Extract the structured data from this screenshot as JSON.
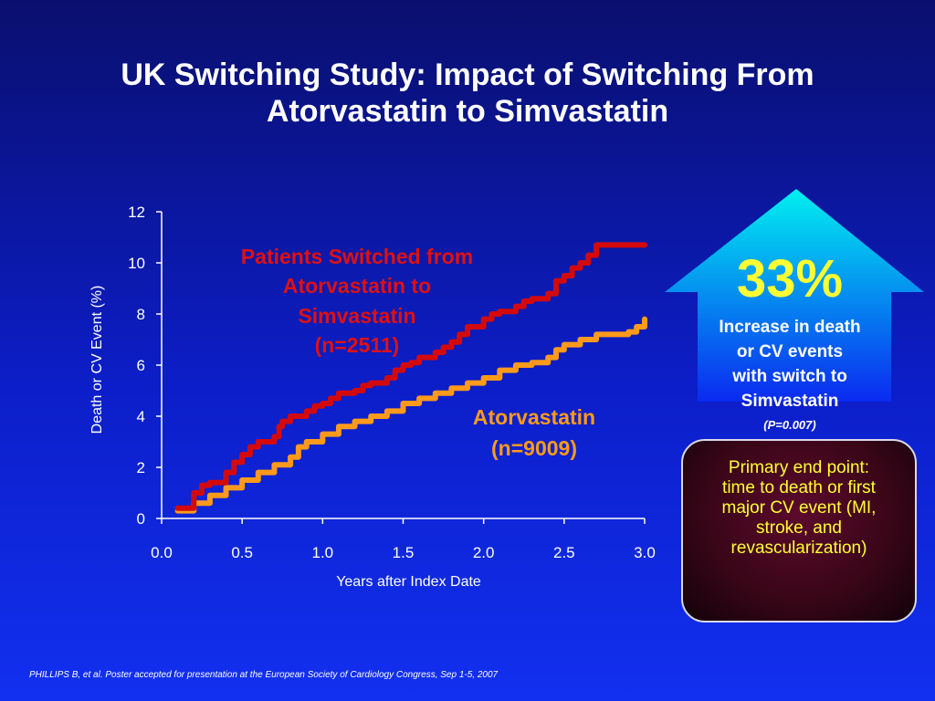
{
  "slide": {
    "title_line1": "UK Switching Study: Impact of Switching From",
    "title_line2": "Atorvastatin to Simvastatin",
    "footnote": "PHILLIPS B, et al. Poster accepted for presentation at the European Society of Cardiology Congress, Sep 1-5, 2007"
  },
  "callout": {
    "percent": "33%",
    "desc_lines": [
      "Increase in death",
      "or CV events",
      "with switch to",
      "Simvastatin"
    ],
    "p_value": "(P=0.007)",
    "box_lines": [
      "Primary end point:",
      "time to death or first",
      "major CV event (MI,",
      "stroke, and",
      "revascularization)"
    ]
  },
  "colors": {
    "switched": "#d40a0a",
    "atorvastatin": "#ff9a1a",
    "callout_text": "#ffff33",
    "arrow_top": "#00f0f0",
    "arrow_bottom": "#0a2af0"
  },
  "chart_data": {
    "type": "line",
    "xlabel": "Years after Index Date",
    "ylabel": "Death or CV Event (%)",
    "xlim": [
      0,
      3
    ],
    "ylim": [
      0,
      12
    ],
    "x_ticks": [
      "0.0",
      "0.5",
      "1.0",
      "1.5",
      "2.0",
      "2.5",
      "3.0"
    ],
    "y_ticks": [
      "0",
      "2",
      "4",
      "6",
      "8",
      "10",
      "12"
    ],
    "annotations": {
      "switched_lines": [
        "Patients Switched from",
        "Atorvastatin to",
        "Simvastatin",
        "(n=2511)"
      ],
      "atorvastatin_lines": [
        "Atorvastatin",
        "(n=9009)"
      ]
    },
    "series": [
      {
        "name": "Patients Switched from Atorvastatin to Simvastatin (n=2511)",
        "step": true,
        "x": [
          0.1,
          0.2,
          0.25,
          0.3,
          0.4,
          0.45,
          0.5,
          0.55,
          0.6,
          0.7,
          0.73,
          0.75,
          0.8,
          0.9,
          0.95,
          1.0,
          1.05,
          1.1,
          1.2,
          1.25,
          1.3,
          1.4,
          1.45,
          1.5,
          1.55,
          1.6,
          1.7,
          1.75,
          1.8,
          1.85,
          1.9,
          2.0,
          2.05,
          2.1,
          2.2,
          2.25,
          2.3,
          2.4,
          2.45,
          2.5,
          2.55,
          2.6,
          2.65,
          2.7,
          2.8,
          3.0
        ],
        "y": [
          0.4,
          1.0,
          1.3,
          1.4,
          1.8,
          2.2,
          2.5,
          2.8,
          3.0,
          3.2,
          3.6,
          3.8,
          4.0,
          4.2,
          4.4,
          4.5,
          4.7,
          4.9,
          5.0,
          5.2,
          5.3,
          5.5,
          5.8,
          6.0,
          6.1,
          6.3,
          6.5,
          6.7,
          6.9,
          7.2,
          7.5,
          7.8,
          8.0,
          8.1,
          8.3,
          8.5,
          8.6,
          8.8,
          9.3,
          9.5,
          9.8,
          10.0,
          10.3,
          10.7,
          10.7,
          10.7
        ]
      },
      {
        "name": "Atorvastatin (n=9009)",
        "step": true,
        "x": [
          0.1,
          0.2,
          0.3,
          0.4,
          0.5,
          0.6,
          0.7,
          0.8,
          0.85,
          0.9,
          1.0,
          1.1,
          1.2,
          1.3,
          1.4,
          1.5,
          1.6,
          1.7,
          1.8,
          1.9,
          2.0,
          2.1,
          2.2,
          2.3,
          2.4,
          2.45,
          2.5,
          2.6,
          2.7,
          2.8,
          2.9,
          2.95,
          3.0
        ],
        "y": [
          0.3,
          0.6,
          0.9,
          1.2,
          1.5,
          1.8,
          2.1,
          2.4,
          2.8,
          3.0,
          3.3,
          3.6,
          3.8,
          4.0,
          4.2,
          4.5,
          4.7,
          4.9,
          5.1,
          5.3,
          5.5,
          5.8,
          6.0,
          6.1,
          6.3,
          6.6,
          6.8,
          7.0,
          7.2,
          7.2,
          7.3,
          7.5,
          7.8
        ]
      }
    ]
  }
}
